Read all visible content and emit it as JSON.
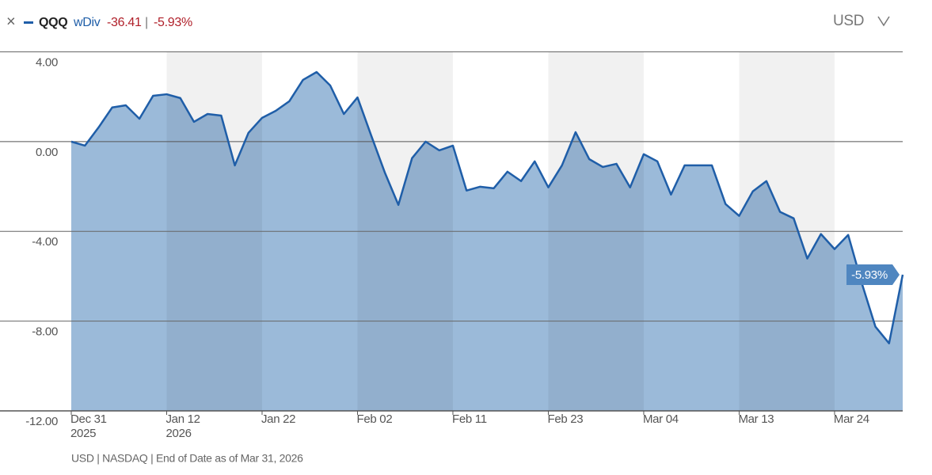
{
  "header": {
    "mode": "wDiv",
    "change": "-36.41",
    "separator": "|",
    "change_pct": "-5.93%",
    "currency": "USD"
  },
  "chart_data": {
    "type": "area",
    "categories": [
      "Dec 31",
      null,
      null,
      null,
      null,
      null,
      null,
      "Jan 12",
      null,
      null,
      null,
      null,
      null,
      null,
      "Jan 22",
      null,
      null,
      null,
      null,
      null,
      null,
      "Feb 02",
      null,
      null,
      null,
      null,
      null,
      null,
      "Feb 11",
      null,
      null,
      null,
      null,
      null,
      null,
      "Feb 23",
      null,
      null,
      null,
      null,
      null,
      null,
      "Mar 04",
      null,
      null,
      null,
      null,
      null,
      null,
      "Mar 13",
      null,
      null,
      null,
      null,
      null,
      null,
      "Mar 24",
      null,
      null,
      null,
      null,
      null
    ],
    "category_years": [
      "2025",
      null,
      null,
      null,
      null,
      null,
      null,
      "2026",
      null,
      null,
      null,
      null,
      null,
      null,
      null,
      null,
      null,
      null,
      null,
      null,
      null,
      null,
      null,
      null,
      null,
      null,
      null,
      null,
      null,
      null,
      null,
      null,
      null,
      null,
      null,
      null,
      null,
      null,
      null,
      null,
      null,
      null,
      null,
      null,
      null,
      null,
      null,
      null,
      null,
      null,
      null,
      null,
      null,
      null,
      null,
      null,
      null,
      null,
      null,
      null,
      null,
      null
    ],
    "series": [
      {
        "name": "QQQ",
        "color": "#1f5ea8",
        "values": [
          0.0,
          -0.18,
          0.63,
          1.52,
          1.62,
          1.02,
          2.04,
          2.11,
          1.94,
          0.88,
          1.23,
          1.16,
          -1.06,
          0.39,
          1.06,
          1.37,
          1.8,
          2.75,
          3.1,
          2.5,
          1.23,
          1.97,
          0.28,
          -1.37,
          -2.82,
          -0.74,
          0.0,
          -0.39,
          -0.18,
          -2.18,
          -2.01,
          -2.08,
          -1.34,
          -1.76,
          -0.88,
          -2.04,
          -1.06,
          0.42,
          -0.78,
          -1.13,
          -0.99,
          -2.04,
          -0.56,
          -0.88,
          -2.36,
          -1.06,
          -1.06,
          -1.06,
          -2.78,
          -3.31,
          -2.22,
          -1.76,
          -3.13,
          -3.42,
          -5.21,
          -4.12,
          -4.79,
          -4.16,
          -6.31,
          -8.25,
          -8.99,
          -5.93
        ],
        "value_labels": [
          null,
          null,
          null,
          null,
          null,
          null,
          null,
          null,
          null,
          null,
          null,
          null,
          null,
          null,
          null,
          null,
          null,
          null,
          null,
          null,
          null,
          null,
          null,
          null,
          null,
          null,
          null,
          null,
          null,
          null,
          null,
          null,
          null,
          null,
          null,
          null,
          null,
          null,
          null,
          null,
          null,
          null,
          null,
          null,
          null,
          null,
          null,
          null,
          null,
          null,
          null,
          null,
          null,
          null,
          null,
          null,
          null,
          null,
          null,
          null,
          null,
          "-5.93%"
        ]
      }
    ],
    "fill": "#9bbad9",
    "ylim": [
      -12,
      4
    ],
    "yticks": [
      {
        "value": -12,
        "label": "-12.00"
      },
      {
        "value": -8,
        "label": "-8.00"
      },
      {
        "value": -4,
        "label": "-4.00"
      },
      {
        "value": 0,
        "label": "0.00"
      },
      {
        "value": 4,
        "label": "4.00"
      }
    ],
    "grid": true
  },
  "footer": "USD | NASDAQ | End of Date as of Mar 31, 2026"
}
